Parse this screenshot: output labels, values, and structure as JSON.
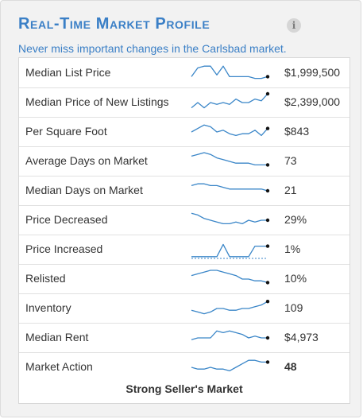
{
  "widget": {
    "title": "Real-Time Market Profile",
    "info_icon": "info-icon",
    "subtitle": "Never miss important changes in the Carlsbad market."
  },
  "colors": {
    "accent": "#3a7fc6",
    "sparkline": "#3a86c8",
    "sparkline_end": "#111111"
  },
  "rows": [
    {
      "label": "Median List Price",
      "value": "$1,999,500",
      "trend": [
        3,
        8,
        9,
        9,
        4,
        9,
        3,
        3,
        3,
        3,
        2,
        2,
        3
      ]
    },
    {
      "label": "Median Price of New Listings",
      "value": "$2,399,000",
      "trend": [
        2,
        5,
        2,
        5,
        4,
        5,
        4,
        7,
        5,
        5,
        7,
        6,
        10
      ]
    },
    {
      "label": "Per Square Foot",
      "value": "$843",
      "trend": [
        5,
        7,
        9,
        8,
        5,
        6,
        4,
        3,
        4,
        4,
        6,
        3,
        7
      ]
    },
    {
      "label": "Average Days on Market",
      "value": "73",
      "trend": [
        8,
        9,
        10,
        9,
        7,
        6,
        5,
        4,
        4,
        4,
        3,
        3,
        3
      ]
    },
    {
      "label": "Median Days on Market",
      "value": "21",
      "trend": [
        8,
        9,
        9,
        8,
        8,
        7,
        6,
        6,
        6,
        6,
        6,
        6,
        5
      ]
    },
    {
      "label": "Price Decreased",
      "value": "29%",
      "trend": [
        9,
        8,
        6,
        5,
        4,
        3,
        3,
        4,
        3,
        5,
        4,
        5,
        5
      ]
    },
    {
      "label": "Price Increased",
      "value": "1%",
      "trend": [
        1,
        1,
        1,
        1,
        1,
        8,
        1,
        1,
        1,
        1,
        7,
        7,
        7
      ]
    },
    {
      "label": "Relisted",
      "value": "10%",
      "trend": [
        7,
        8,
        9,
        10,
        10,
        9,
        8,
        7,
        5,
        5,
        4,
        4,
        3
      ]
    },
    {
      "label": "Inventory",
      "value": "109",
      "trend": [
        4,
        3,
        2,
        3,
        5,
        5,
        4,
        4,
        5,
        5,
        6,
        7,
        9
      ]
    },
    {
      "label": "Median Rent",
      "value": "$4,973",
      "trend": [
        4,
        5,
        5,
        5,
        9,
        8,
        9,
        8,
        7,
        5,
        6,
        5,
        5
      ]
    },
    {
      "label": "Market Action",
      "value": "48",
      "trend": [
        5,
        4,
        4,
        5,
        4,
        4,
        3,
        5,
        7,
        9,
        9,
        8,
        8
      ]
    }
  ],
  "verdict": "Strong Seller's Market"
}
